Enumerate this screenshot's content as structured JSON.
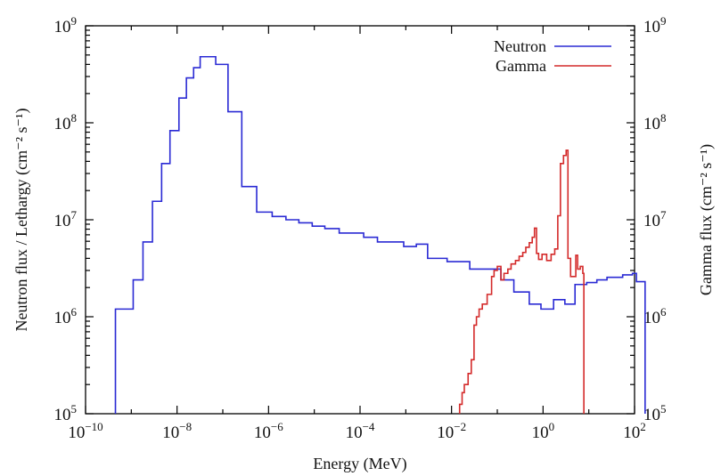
{
  "chart_data": {
    "type": "line",
    "step": true,
    "xlabel": "Energy (MeV)",
    "ylabel_left": "Neutron flux / Lethargy (cm⁻² s⁻¹)",
    "ylabel_right": "Gamma flux (cm⁻² s⁻¹)",
    "x_scale": "log",
    "y_scale": "log",
    "xlim": [
      1e-10,
      100
    ],
    "ylim_left": [
      100000,
      1000000000
    ],
    "ylim_right": [
      100000,
      1000000000
    ],
    "x_ticks": [
      {
        "value": 1e-10,
        "base": "10",
        "exp": "−10"
      },
      {
        "value": 1e-08,
        "base": "10",
        "exp": "−8"
      },
      {
        "value": 1e-06,
        "base": "10",
        "exp": "−6"
      },
      {
        "value": 0.0001,
        "base": "10",
        "exp": "−4"
      },
      {
        "value": 0.01,
        "base": "10",
        "exp": "−2"
      },
      {
        "value": 1,
        "base": "10",
        "exp": "0"
      },
      {
        "value": 100,
        "base": "10",
        "exp": "2"
      }
    ],
    "y_ticks": [
      {
        "value": 100000,
        "base": "10",
        "exp": "5"
      },
      {
        "value": 1000000,
        "base": "10",
        "exp": "6"
      },
      {
        "value": 10000000,
        "base": "10",
        "exp": "7"
      },
      {
        "value": 100000000,
        "base": "10",
        "exp": "8"
      },
      {
        "value": 1000000000,
        "base": "10",
        "exp": "9"
      }
    ],
    "grid": false,
    "legend": "top-right",
    "series": [
      {
        "name": "Neutron",
        "color": "#2a2ad4",
        "axis": "left",
        "points": [
          [
            4.5e-10,
            100000
          ],
          [
            4.5e-10,
            1200000
          ],
          [
            1.1e-09,
            1200000
          ],
          [
            1.1e-09,
            2400000
          ],
          [
            1.8e-09,
            2400000
          ],
          [
            1.8e-09,
            5900000
          ],
          [
            2.9e-09,
            5900000
          ],
          [
            2.9e-09,
            15500000
          ],
          [
            4.6e-09,
            15500000
          ],
          [
            4.6e-09,
            38000000
          ],
          [
            7e-09,
            38000000
          ],
          [
            7e-09,
            83000000
          ],
          [
            1.1e-08,
            83000000
          ],
          [
            1.1e-08,
            180000000
          ],
          [
            1.6e-08,
            180000000
          ],
          [
            1.6e-08,
            290000000
          ],
          [
            2.3e-08,
            290000000
          ],
          [
            2.3e-08,
            370000000
          ],
          [
            3.2e-08,
            370000000
          ],
          [
            3.2e-08,
            480000000
          ],
          [
            4.5e-08,
            480000000
          ],
          [
            4.5e-08,
            480000000
          ],
          [
            7e-08,
            480000000
          ],
          [
            7e-08,
            400000000
          ],
          [
            1.3e-07,
            400000000
          ],
          [
            1.3e-07,
            130000000
          ],
          [
            2.6e-07,
            130000000
          ],
          [
            2.6e-07,
            22000000
          ],
          [
            5.5e-07,
            22000000
          ],
          [
            5.5e-07,
            12000000
          ],
          [
            1.2e-06,
            12000000
          ],
          [
            1.2e-06,
            10800000
          ],
          [
            2.4e-06,
            10800000
          ],
          [
            2.4e-06,
            10000000
          ],
          [
            4.6e-06,
            10000000
          ],
          [
            4.6e-06,
            9300000
          ],
          [
            9e-06,
            9300000
          ],
          [
            9e-06,
            8600000
          ],
          [
            1.7e-05,
            8600000
          ],
          [
            1.7e-05,
            8100000
          ],
          [
            3.5e-05,
            8100000
          ],
          [
            3.5e-05,
            7300000
          ],
          [
            0.00012,
            7300000
          ],
          [
            0.00012,
            6600000
          ],
          [
            0.00024,
            6600000
          ],
          [
            0.00024,
            5900000
          ],
          [
            0.0009,
            5900000
          ],
          [
            0.0009,
            5300000
          ],
          [
            0.0017,
            5300000
          ],
          [
            0.0017,
            5600000
          ],
          [
            0.003,
            5600000
          ],
          [
            0.003,
            4000000
          ],
          [
            0.008,
            4000000
          ],
          [
            0.008,
            3700000
          ],
          [
            0.025,
            3700000
          ],
          [
            0.025,
            3100000
          ],
          [
            0.12,
            3100000
          ],
          [
            0.12,
            2400000
          ],
          [
            0.23,
            2400000
          ],
          [
            0.23,
            1800000
          ],
          [
            0.5,
            1800000
          ],
          [
            0.5,
            1350000
          ],
          [
            0.9,
            1350000
          ],
          [
            0.9,
            1200000
          ],
          [
            1.7,
            1200000
          ],
          [
            1.7,
            1500000
          ],
          [
            3.0,
            1500000
          ],
          [
            3.0,
            1350000
          ],
          [
            5.0,
            1350000
          ],
          [
            5.0,
            2150000
          ],
          [
            9.0,
            2150000
          ],
          [
            9.0,
            2250000
          ],
          [
            15,
            2250000
          ],
          [
            15,
            2400000
          ],
          [
            25,
            2400000
          ],
          [
            25,
            2550000
          ],
          [
            55,
            2550000
          ],
          [
            55,
            2700000
          ],
          [
            90,
            2700000
          ],
          [
            90,
            2800000
          ],
          [
            110,
            2800000
          ],
          [
            110,
            2300000
          ],
          [
            170,
            2300000
          ],
          [
            170,
            100000
          ]
        ]
      },
      {
        "name": "Gamma",
        "color": "#d42a2a",
        "axis": "right",
        "points": [
          [
            0.015,
            100000
          ],
          [
            0.015,
            125000
          ],
          [
            0.017,
            125000
          ],
          [
            0.017,
            165000
          ],
          [
            0.019,
            165000
          ],
          [
            0.019,
            200000
          ],
          [
            0.023,
            200000
          ],
          [
            0.023,
            260000
          ],
          [
            0.027,
            260000
          ],
          [
            0.027,
            360000
          ],
          [
            0.031,
            360000
          ],
          [
            0.031,
            820000
          ],
          [
            0.035,
            820000
          ],
          [
            0.035,
            1000000
          ],
          [
            0.04,
            1000000
          ],
          [
            0.04,
            1200000
          ],
          [
            0.047,
            1200000
          ],
          [
            0.047,
            1350000
          ],
          [
            0.06,
            1350000
          ],
          [
            0.06,
            1700000
          ],
          [
            0.075,
            1700000
          ],
          [
            0.075,
            2600000
          ],
          [
            0.085,
            2600000
          ],
          [
            0.085,
            3000000
          ],
          [
            0.1,
            3000000
          ],
          [
            0.1,
            3300000
          ],
          [
            0.12,
            3300000
          ],
          [
            0.12,
            2400000
          ],
          [
            0.14,
            2400000
          ],
          [
            0.14,
            2800000
          ],
          [
            0.17,
            2800000
          ],
          [
            0.17,
            3100000
          ],
          [
            0.2,
            3100000
          ],
          [
            0.2,
            3500000
          ],
          [
            0.25,
            3500000
          ],
          [
            0.25,
            3800000
          ],
          [
            0.3,
            3800000
          ],
          [
            0.3,
            4200000
          ],
          [
            0.36,
            4200000
          ],
          [
            0.36,
            4600000
          ],
          [
            0.42,
            4600000
          ],
          [
            0.42,
            5200000
          ],
          [
            0.5,
            5200000
          ],
          [
            0.5,
            5800000
          ],
          [
            0.58,
            5800000
          ],
          [
            0.58,
            6600000
          ],
          [
            0.65,
            6600000
          ],
          [
            0.65,
            8200000
          ],
          [
            0.72,
            8200000
          ],
          [
            0.72,
            4500000
          ],
          [
            0.8,
            4500000
          ],
          [
            0.8,
            3900000
          ],
          [
            0.95,
            3900000
          ],
          [
            0.95,
            4400000
          ],
          [
            1.2,
            4400000
          ],
          [
            1.2,
            3800000
          ],
          [
            1.5,
            3800000
          ],
          [
            1.5,
            4400000
          ],
          [
            1.8,
            4400000
          ],
          [
            1.8,
            5000000
          ],
          [
            2.1,
            5000000
          ],
          [
            2.1,
            11000000
          ],
          [
            2.4,
            11000000
          ],
          [
            2.4,
            38000000
          ],
          [
            2.8,
            38000000
          ],
          [
            2.8,
            46000000
          ],
          [
            3.2,
            46000000
          ],
          [
            3.2,
            52000000
          ],
          [
            3.5,
            52000000
          ],
          [
            3.5,
            4000000
          ],
          [
            4.0,
            4000000
          ],
          [
            4.0,
            2600000
          ],
          [
            5.2,
            2600000
          ],
          [
            5.2,
            4300000
          ],
          [
            5.7,
            4300000
          ],
          [
            5.7,
            3100000
          ],
          [
            6.5,
            3100000
          ],
          [
            6.5,
            3300000
          ],
          [
            7.4,
            3300000
          ],
          [
            7.4,
            2800000
          ],
          [
            7.8,
            2800000
          ],
          [
            7.8,
            100000
          ]
        ]
      }
    ]
  }
}
